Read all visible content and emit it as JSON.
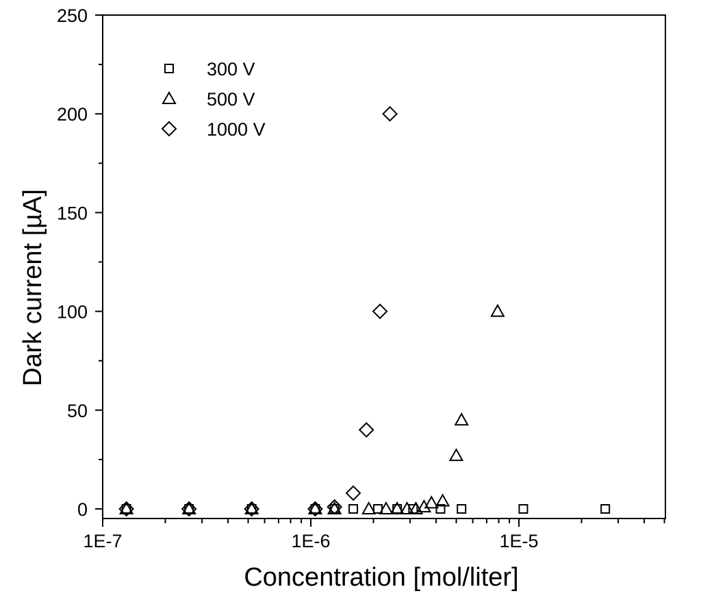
{
  "chart_data": {
    "type": "scatter",
    "title": "",
    "xlabel": "Concentration  [mol/liter]",
    "ylabel": "Dark current  [µA]",
    "xscale": "log",
    "xlim": [
      1e-07,
      5e-05
    ],
    "ylim": [
      -5,
      250
    ],
    "x_ticks": [
      1e-07,
      1e-06,
      1e-05
    ],
    "x_tick_labels": [
      "1E-7",
      "1E-6",
      "1E-5"
    ],
    "y_ticks": [
      0,
      50,
      100,
      150,
      200,
      250
    ],
    "y_tick_labels": [
      "0",
      "50",
      "100",
      "150",
      "200",
      "250"
    ],
    "grid": false,
    "legend_position": "top-left",
    "series": [
      {
        "name": "300 V",
        "marker": "square",
        "x": [
          1.3e-07,
          2.6e-07,
          5.2e-07,
          1.05e-06,
          1.3e-06,
          1.6e-06,
          2.1e-06,
          2.6e-06,
          3.1e-06,
          4.2e-06,
          5.3e-06,
          1.05e-05,
          2.6e-05
        ],
        "y": [
          0,
          0,
          0,
          0,
          0,
          0,
          0,
          0,
          0,
          0,
          0,
          0,
          0
        ]
      },
      {
        "name": "500 V",
        "marker": "triangle",
        "x": [
          1.3e-07,
          2.6e-07,
          5.2e-07,
          1.05e-06,
          1.3e-06,
          1.9e-06,
          2.3e-06,
          2.6e-06,
          2.9e-06,
          3.2e-06,
          3.5e-06,
          3.8e-06,
          4.3e-06,
          5e-06,
          5.3e-06,
          7.9e-06
        ],
        "y": [
          0,
          0,
          0,
          0,
          0,
          0,
          0,
          0,
          0,
          0,
          1,
          3,
          4,
          27,
          45,
          100
        ]
      },
      {
        "name": "1000 V",
        "marker": "diamond",
        "x": [
          1.3e-07,
          2.6e-07,
          5.2e-07,
          1.05e-06,
          1.3e-06,
          1.6e-06,
          1.85e-06,
          2.15e-06,
          2.4e-06
        ],
        "y": [
          0,
          0,
          0,
          0,
          1,
          8,
          40,
          100,
          200
        ]
      }
    ]
  }
}
